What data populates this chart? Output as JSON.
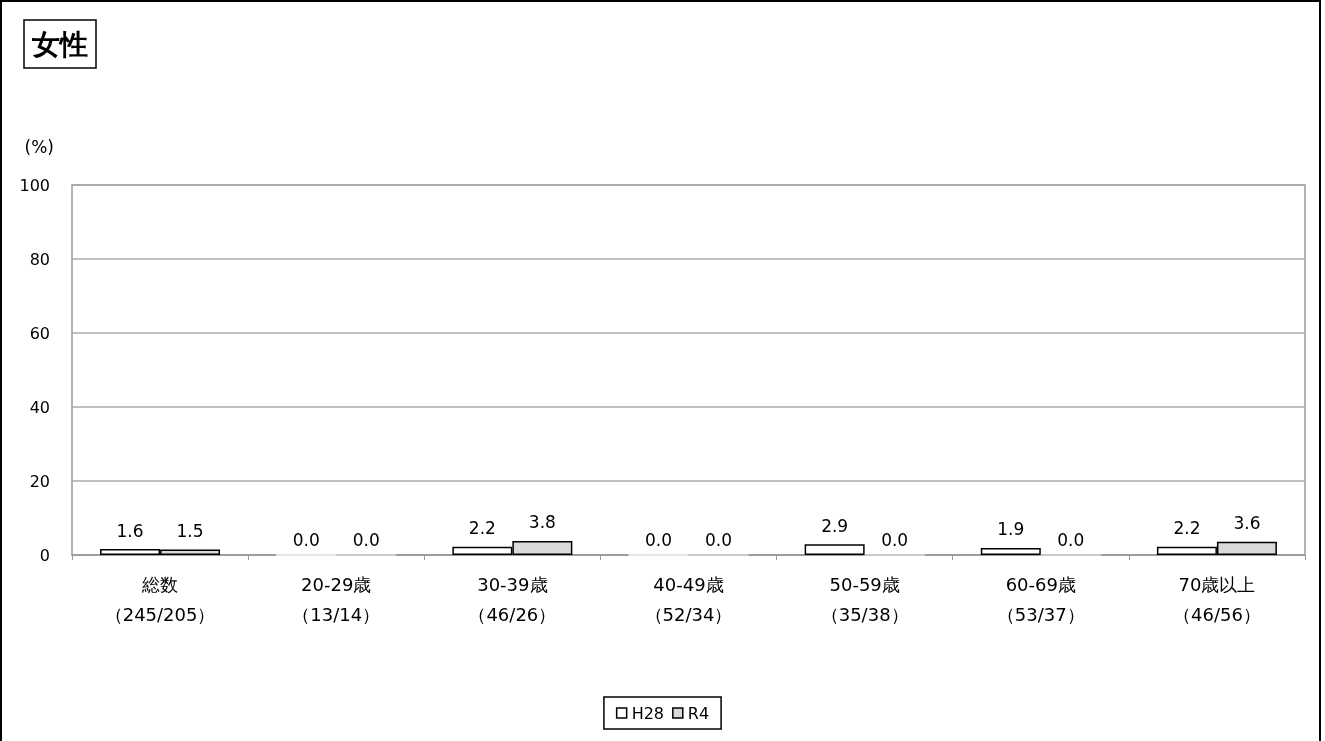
{
  "chart_data": {
    "type": "bar",
    "title": "女性",
    "ylabel": "(%)",
    "categories": [
      "総数（245/205）",
      "20-29歳（13/14）",
      "30-39歳（46/26）",
      "40-49歳（52/34）",
      "50-59歳（35/38）",
      "60-69歳（53/37）",
      "70歳以上（46/56）"
    ],
    "series": [
      {
        "name": "H28",
        "color": "#ffffff",
        "values": [
          1.6,
          0.0,
          2.2,
          0.0,
          2.9,
          1.9,
          2.2
        ],
        "value_labels": [
          "1.6",
          "0.0",
          "2.2",
          "0.0",
          "2.9",
          "1.9",
          "2.2"
        ]
      },
      {
        "name": "R4",
        "color": "#d9d9d9",
        "values": [
          1.5,
          0.0,
          3.8,
          0.0,
          0.0,
          0.0,
          3.6
        ],
        "value_labels": [
          "1.5",
          "0.0",
          "3.8",
          "0.0",
          "0.0",
          "0.0",
          "3.6"
        ]
      }
    ],
    "ylim": [
      0,
      100
    ],
    "yticks": [
      0,
      20,
      40,
      60,
      80,
      100
    ],
    "grid": "y",
    "legend": "bottom"
  }
}
